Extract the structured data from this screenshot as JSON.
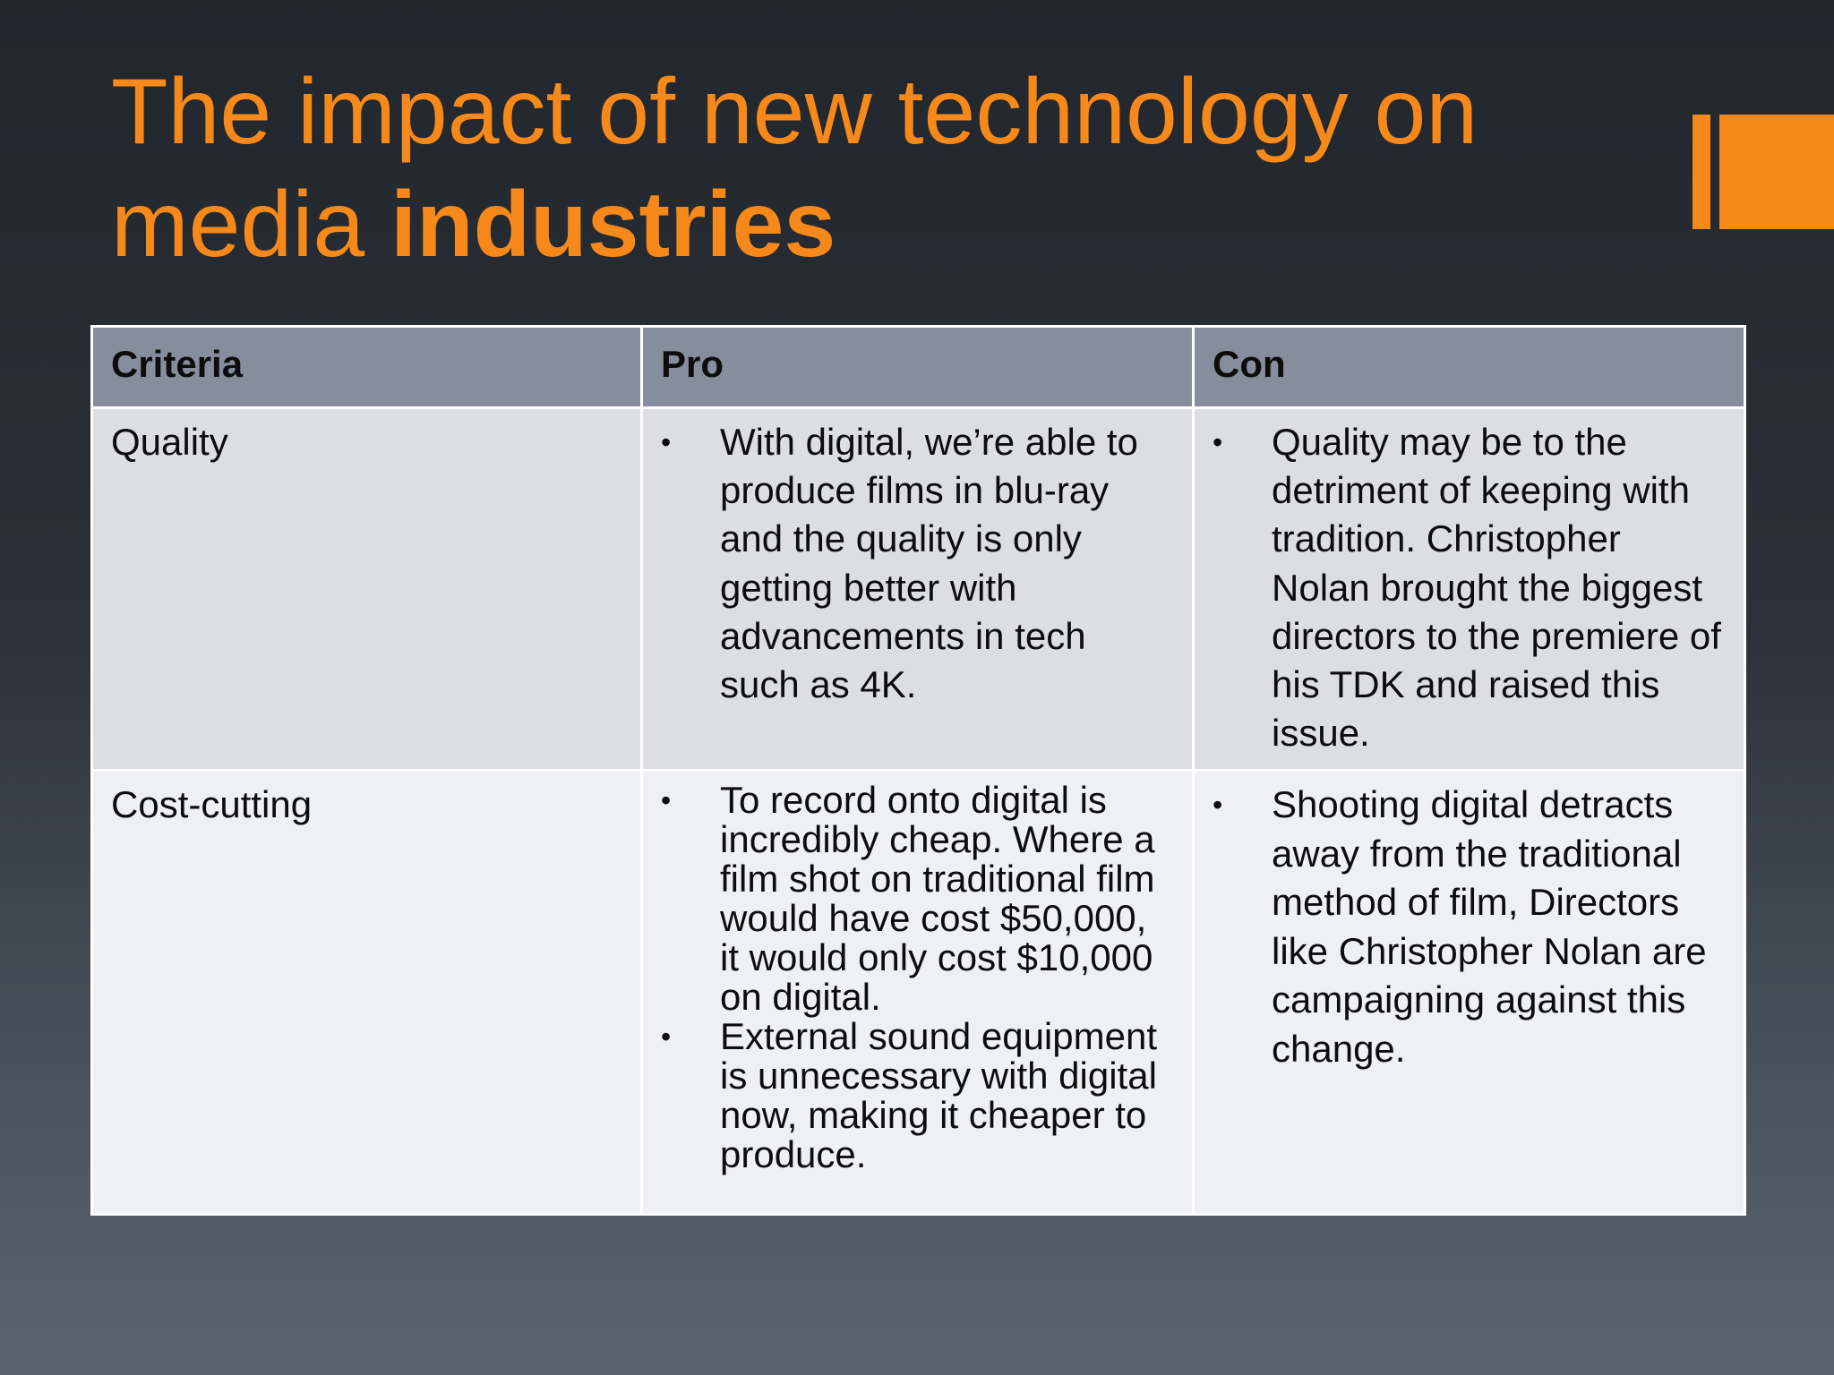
{
  "slide": {
    "title_regular": "The impact of new technology on media",
    "title_bold": "industries",
    "accent_color": "#f7891b"
  },
  "table": {
    "headers": [
      "Criteria",
      "Pro",
      "Con"
    ],
    "rows": [
      {
        "criteria": "Quality",
        "pro": [
          "With digital, we’re able to produce films in blu-ray and the quality is only getting better with advancements in tech such as 4K."
        ],
        "con": [
          "Quality may be to the detriment of keeping with tradition. Christopher Nolan brought the biggest directors to the premiere of his TDK and raised this issue."
        ]
      },
      {
        "criteria": "Cost-cutting",
        "pro": [
          "To record onto digital is incredibly cheap. Where a film shot on traditional film would have cost $50,000, it would only cost $10,000 on digital.",
          "External sound equipment is unnecessary with digital now, making it cheaper to produce."
        ],
        "con": [
          "Shooting digital detracts away from the traditional method of film, Directors like Christopher Nolan are campaigning against this change."
        ]
      }
    ],
    "bullet_glyph": "•",
    "header_color": "#868e9d",
    "row_colors": [
      "#dcdee2",
      "#eef0f3"
    ]
  }
}
